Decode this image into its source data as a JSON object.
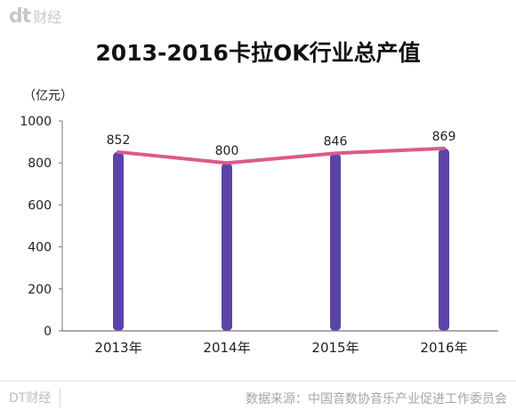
{
  "header": {
    "logo_mark": "dt",
    "logo_text": "财经"
  },
  "footer": {
    "brand": "DT财经",
    "source": "数据来源：中国音数协音乐产业促进工作委员会"
  },
  "colors": {
    "bar": "#5b44a8",
    "line": "#dc5a8c",
    "axis": "#777777",
    "grid": "#9a9a9a"
  },
  "chart_data": {
    "type": "bar",
    "title": "2013-2016卡拉OK行业总产值",
    "unit_label": "（亿元）",
    "categories": [
      "2013年",
      "2014年",
      "2015年",
      "2016年"
    ],
    "values": [
      852,
      800,
      846,
      869
    ],
    "overlay_line": true,
    "ylim": [
      0,
      1000
    ],
    "yticks": [
      0,
      200,
      400,
      600,
      800,
      1000
    ],
    "grid": false,
    "legend": "none"
  }
}
